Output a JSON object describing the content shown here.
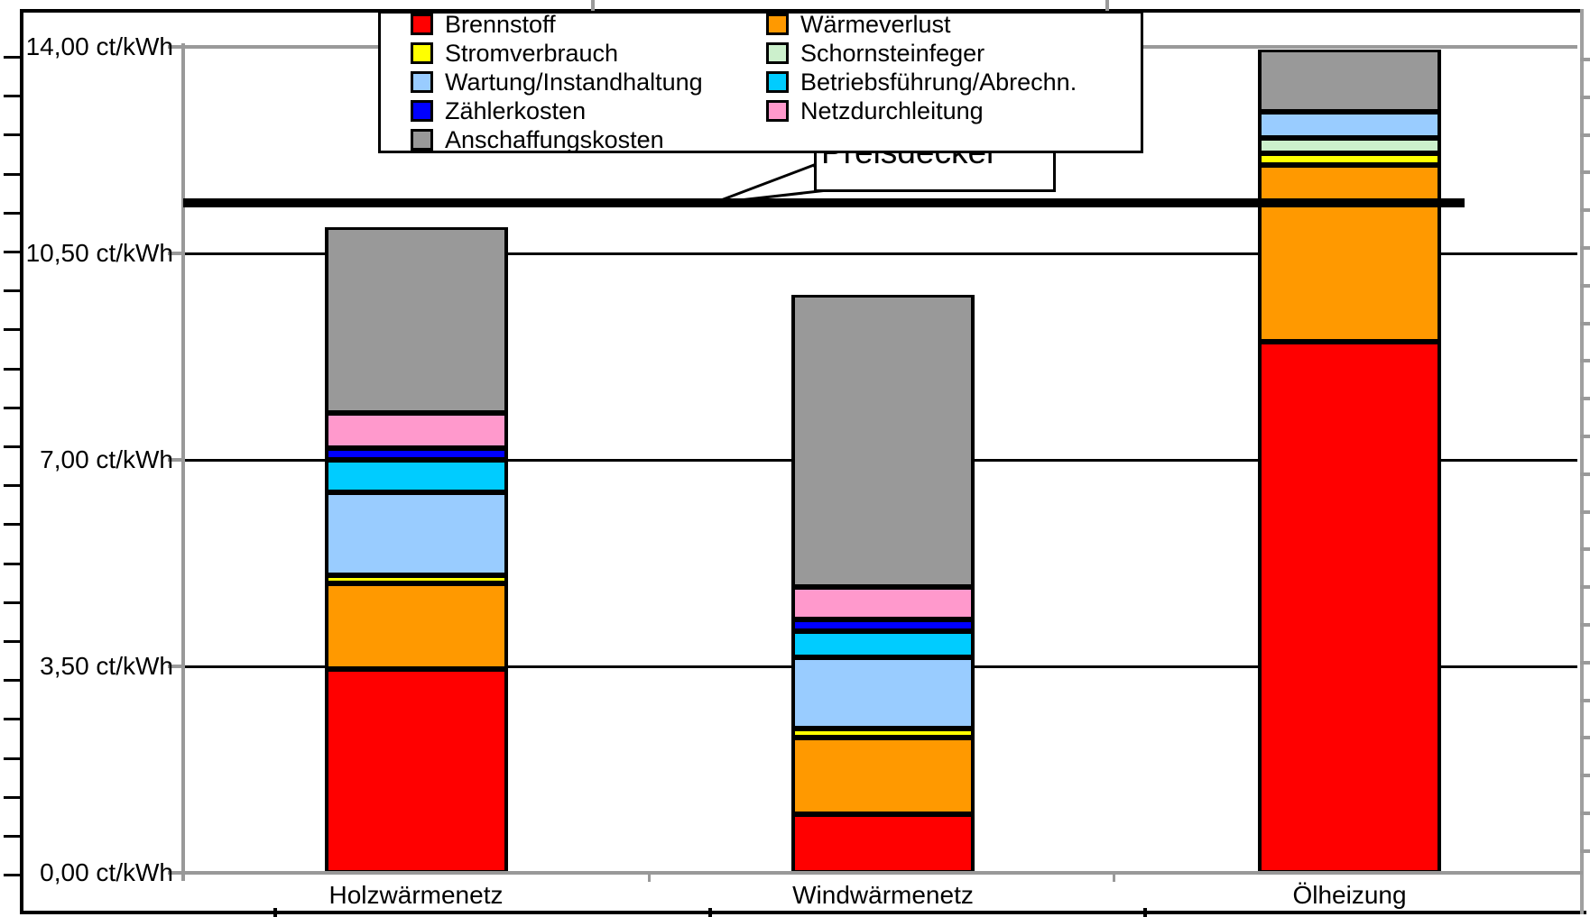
{
  "chart_data": {
    "type": "bar",
    "stacked": true,
    "unit": "ct/kWh",
    "categories": [
      "Holzwärmenetz",
      "Windwärmenetz",
      "Ölheizung"
    ],
    "series": [
      {
        "name": "Brennstoff",
        "color": "#FF0000",
        "values": [
          3.45,
          1.0,
          9.0
        ]
      },
      {
        "name": "Wärmeverlust",
        "color": "#FF9900",
        "values": [
          1.45,
          1.3,
          3.0
        ]
      },
      {
        "name": "Stromverbrauch",
        "color": "#FFFF00",
        "values": [
          0.15,
          0.15,
          0.2
        ]
      },
      {
        "name": "Schornsteinfeger",
        "color": "#CCF0CC",
        "values": [
          0.0,
          0.0,
          0.25
        ]
      },
      {
        "name": "Wartung/Instandhaltung",
        "color": "#99CCFF",
        "values": [
          1.4,
          1.2,
          0.45
        ]
      },
      {
        "name": "Betriebsführung/Abrechn.",
        "color": "#00CCFF",
        "values": [
          0.55,
          0.45,
          0.0
        ]
      },
      {
        "name": "Zählerkosten",
        "color": "#0000FF",
        "values": [
          0.2,
          0.2,
          0.0
        ]
      },
      {
        "name": "Netzdurchleitung",
        "color": "#FF99CC",
        "values": [
          0.6,
          0.55,
          0.0
        ]
      },
      {
        "name": "Anschaffungskosten",
        "color": "#999999",
        "values": [
          3.15,
          4.95,
          1.05
        ]
      }
    ],
    "bar_totals": [
      10.95,
      9.8,
      13.95
    ],
    "ylim": [
      0,
      14
    ],
    "yticks": [
      {
        "value": 0,
        "label": "0,00 ct/kWh"
      },
      {
        "value": 3.5,
        "label": "3,50 ct/kWh"
      },
      {
        "value": 7,
        "label": "7,00 ct/kWh"
      },
      {
        "value": 10.5,
        "label": "10,50 ct/kWh"
      },
      {
        "value": 14,
        "label": "14,00 ct/kWh"
      }
    ],
    "grid": "horizontal-major",
    "legend_position": "top-center",
    "legend_columns": [
      [
        "Brennstoff",
        "Stromverbrauch",
        "Wartung/Instandhaltung",
        "Zählerkosten",
        "Anschaffungskosten"
      ],
      [
        "Wärmeverlust",
        "Schornsteinfeger",
        "Betriebsführung/Abrechn.",
        "Netzdurchleitung"
      ]
    ],
    "annotation": {
      "label": "Preisdeckel",
      "value": 11.35,
      "style": "thick-black-horizontal-line"
    }
  }
}
